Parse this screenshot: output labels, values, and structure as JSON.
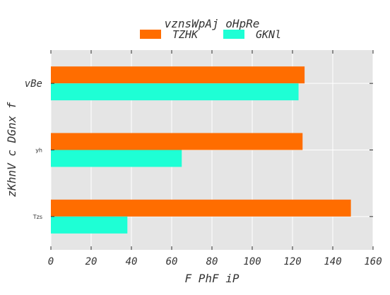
{
  "chart_data": {
    "type": "bar",
    "orientation": "horizontal",
    "title": "vznsWpAj oHpRe",
    "xlabel": "F PhF iP",
    "ylabel": "zKhnV c DGnx f",
    "categories": [
      "vBe",
      "yh",
      "Tzs"
    ],
    "series": [
      {
        "name": "TZHK",
        "color": "#ff6d00",
        "values": [
          126,
          125,
          149
        ]
      },
      {
        "name": "GKNl",
        "color": "#1effd5",
        "values": [
          123,
          65,
          38
        ]
      }
    ],
    "xlim": [
      0,
      160
    ],
    "xticks": [
      0,
      20,
      40,
      60,
      80,
      100,
      120,
      140,
      160
    ],
    "grid": true,
    "legend_position": "top-center",
    "background_color": "#e5e5e5",
    "grid_color": "#ffffff"
  }
}
